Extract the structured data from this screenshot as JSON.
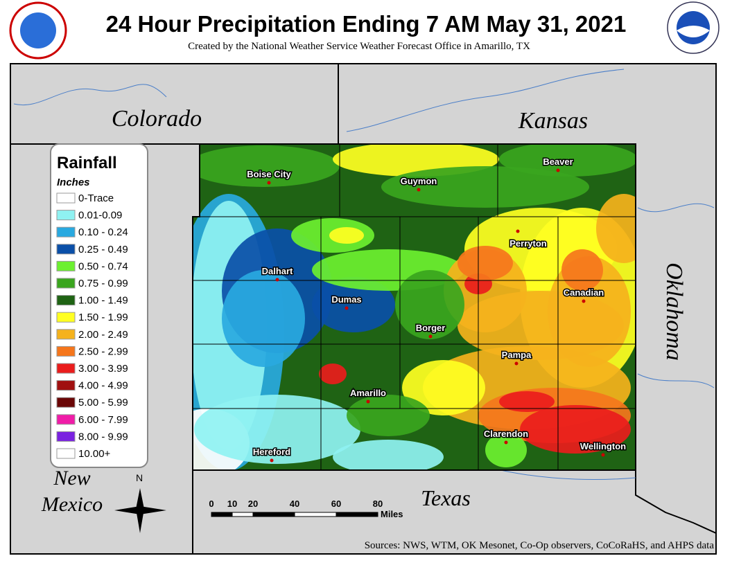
{
  "header": {
    "title": "24 Hour Precipitation Ending 7 AM May 31, 2021",
    "subtitle": "Created by the National Weather Service Weather Forecast Office in Amarillo, TX"
  },
  "states": {
    "colorado": "Colorado",
    "kansas": "Kansas",
    "oklahoma": "Oklahoma",
    "new_mexico": [
      "New",
      "Mexico"
    ],
    "texas": "Texas"
  },
  "legend": {
    "title": "Rainfall",
    "units": "Inches",
    "items": [
      {
        "label": "0-Trace",
        "color": "#ffffff"
      },
      {
        "label": "0.01-0.09",
        "color": "#8ff2f2"
      },
      {
        "label": "0.10 - 0.24",
        "color": "#29a9e0"
      },
      {
        "label": "0.25 - 0.49",
        "color": "#0a4fa8"
      },
      {
        "label": "0.50 - 0.74",
        "color": "#6cf030"
      },
      {
        "label": "0.75 - 0.99",
        "color": "#3aa51e"
      },
      {
        "label": "1.00 - 1.49",
        "color": "#1f6314"
      },
      {
        "label": "1.50 - 1.99",
        "color": "#ffff22"
      },
      {
        "label": "2.00 - 2.49",
        "color": "#f5b21c"
      },
      {
        "label": "2.50 - 2.99",
        "color": "#f5761c"
      },
      {
        "label": "3.00 - 3.99",
        "color": "#ea1c1c"
      },
      {
        "label": "4.00 - 4.99",
        "color": "#a01010"
      },
      {
        "label": "5.00 - 5.99",
        "color": "#6a0606"
      },
      {
        "label": "6.00 - 7.99",
        "color": "#f01ca8"
      },
      {
        "label": "8.00 - 9.99",
        "color": "#7a22e0"
      },
      {
        "label": "10.00+",
        "color": "#ffffff"
      }
    ]
  },
  "cities": [
    "Boise City",
    "Guymon",
    "Beaver",
    "Perryton",
    "Dalhart",
    "Dumas",
    "Canadian",
    "Borger",
    "Pampa",
    "Amarillo",
    "Clarendon",
    "Wellington",
    "Hereford"
  ],
  "scale": {
    "ticks": [
      0,
      10,
      20,
      40,
      60,
      80
    ],
    "unit": "Miles"
  },
  "compass": "N",
  "sources": "Sources:  NWS, WTM, OK Mesonet, Co-Op observers, CoCoRaHS, and AHPS data"
}
